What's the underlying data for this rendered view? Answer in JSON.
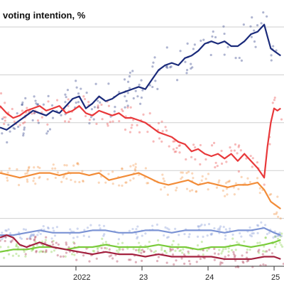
{
  "chart_data": {
    "type": "line",
    "title": "voting intention, %",
    "x_ticks": [
      "2022",
      "23",
      "24",
      "25"
    ],
    "x_tick_positions": [
      2022.0,
      2023.0,
      2024.0,
      2025.0
    ],
    "x_range": [
      2020.85,
      2025.15
    ],
    "y_range": [
      0,
      50
    ],
    "grid": true,
    "legend": "none",
    "series": [
      {
        "color": "#1a2a7a",
        "x": [
          2020.85,
          2020.95,
          2021.05,
          2021.15,
          2021.25,
          2021.35,
          2021.45,
          2021.55,
          2021.65,
          2021.75,
          2021.85,
          2021.95,
          2022.05,
          2022.15,
          2022.25,
          2022.35,
          2022.45,
          2022.55,
          2022.65,
          2022.75,
          2022.85,
          2022.95,
          2023.05,
          2023.15,
          2023.25,
          2023.35,
          2023.45,
          2023.55,
          2023.65,
          2023.75,
          2023.85,
          2023.95,
          2024.05,
          2024.15,
          2024.25,
          2024.35,
          2024.45,
          2024.55,
          2024.65,
          2024.75,
          2024.85,
          2024.9,
          2024.95,
          2025.0,
          2025.05,
          2025.1
        ],
        "values": [
          29.0,
          28.5,
          29.5,
          30.5,
          31.5,
          32.5,
          32.0,
          31.5,
          32.5,
          32.0,
          33.5,
          35.0,
          35.5,
          33.0,
          34.0,
          35.5,
          34.5,
          35.0,
          36.0,
          36.5,
          37.0,
          37.5,
          37.0,
          39.0,
          41.0,
          42.0,
          42.5,
          42.0,
          43.5,
          44.0,
          45.0,
          46.5,
          47.0,
          46.5,
          47.0,
          46.0,
          46.0,
          47.0,
          48.5,
          49.0,
          50.5,
          48.0,
          45.5,
          45.0,
          44.5,
          44.0
        ]
      },
      {
        "color": "#e8383a",
        "x": [
          2020.85,
          2020.95,
          2021.05,
          2021.15,
          2021.25,
          2021.35,
          2021.45,
          2021.55,
          2021.65,
          2021.75,
          2021.85,
          2021.95,
          2022.05,
          2022.15,
          2022.25,
          2022.35,
          2022.45,
          2022.55,
          2022.65,
          2022.75,
          2022.85,
          2022.95,
          2023.05,
          2023.15,
          2023.25,
          2023.35,
          2023.45,
          2023.55,
          2023.65,
          2023.75,
          2023.85,
          2023.95,
          2024.05,
          2024.15,
          2024.25,
          2024.35,
          2024.45,
          2024.55,
          2024.65,
          2024.75,
          2024.85,
          2024.9,
          2024.95,
          2025.0,
          2025.05,
          2025.1
        ],
        "values": [
          33.5,
          32.0,
          31.0,
          31.5,
          32.5,
          33.0,
          33.5,
          32.5,
          33.0,
          33.5,
          32.0,
          32.5,
          33.5,
          32.0,
          31.5,
          32.5,
          32.0,
          31.5,
          32.0,
          31.0,
          31.0,
          30.5,
          30.0,
          29.0,
          28.0,
          27.5,
          27.0,
          26.0,
          25.5,
          24.0,
          24.5,
          23.5,
          23.0,
          23.5,
          22.5,
          23.5,
          22.0,
          23.5,
          22.0,
          20.5,
          18.5,
          25.0,
          30.0,
          33.0,
          32.5,
          33.0
        ]
      },
      {
        "color": "#f28c38",
        "x": [
          2020.85,
          2021.0,
          2021.15,
          2021.3,
          2021.45,
          2021.6,
          2021.75,
          2021.9,
          2022.05,
          2022.2,
          2022.35,
          2022.5,
          2022.65,
          2022.8,
          2022.95,
          2023.1,
          2023.25,
          2023.4,
          2023.55,
          2023.7,
          2023.85,
          2024.0,
          2024.15,
          2024.3,
          2024.45,
          2024.6,
          2024.75,
          2024.85,
          2024.95,
          2025.05,
          2025.1
        ],
        "values": [
          19.5,
          19.0,
          18.5,
          19.0,
          19.5,
          19.5,
          19.0,
          19.5,
          19.5,
          19.0,
          19.5,
          18.0,
          18.5,
          19.0,
          19.5,
          18.5,
          17.5,
          17.0,
          17.5,
          18.0,
          17.0,
          17.5,
          17.0,
          16.5,
          17.0,
          17.0,
          17.5,
          16.0,
          13.5,
          12.5,
          12.0
        ]
      },
      {
        "color": "#7b93d4",
        "x": [
          2020.85,
          2021.05,
          2021.25,
          2021.45,
          2021.65,
          2021.85,
          2022.05,
          2022.25,
          2022.45,
          2022.65,
          2022.85,
          2023.05,
          2023.25,
          2023.45,
          2023.65,
          2023.85,
          2024.05,
          2024.25,
          2024.45,
          2024.65,
          2024.85,
          2025.0,
          2025.1
        ],
        "values": [
          6.5,
          6.5,
          7.0,
          7.5,
          7.0,
          7.0,
          7.0,
          7.5,
          7.5,
          7.0,
          7.0,
          7.5,
          7.5,
          7.0,
          7.5,
          7.5,
          7.5,
          7.0,
          7.5,
          7.5,
          8.0,
          7.0,
          6.5
        ]
      },
      {
        "color": "#7acb3a",
        "x": [
          2020.85,
          2021.05,
          2021.25,
          2021.45,
          2021.65,
          2021.85,
          2022.05,
          2022.25,
          2022.45,
          2022.65,
          2022.85,
          2023.05,
          2023.25,
          2023.45,
          2023.65,
          2023.85,
          2024.05,
          2024.25,
          2024.45,
          2024.65,
          2024.85,
          2025.0,
          2025.1
        ],
        "values": [
          3.0,
          3.5,
          3.5,
          4.0,
          4.0,
          3.5,
          4.0,
          4.0,
          4.5,
          4.0,
          4.0,
          4.0,
          4.5,
          4.0,
          4.0,
          3.5,
          4.0,
          4.0,
          4.5,
          4.0,
          4.5,
          5.0,
          5.5
        ]
      },
      {
        "color": "#a3213f",
        "x": [
          2020.85,
          2020.95,
          2021.05,
          2021.15,
          2021.25,
          2021.45,
          2021.65,
          2021.85,
          2022.05,
          2022.25,
          2022.45,
          2022.65,
          2022.85,
          2023.05,
          2023.25,
          2023.45,
          2023.65,
          2023.85,
          2024.05,
          2024.25,
          2024.45,
          2024.65,
          2024.85,
          2025.0,
          2025.1
        ],
        "values": [
          6.0,
          6.5,
          6.0,
          4.5,
          4.0,
          5.0,
          4.0,
          3.5,
          3.0,
          2.5,
          3.0,
          2.5,
          2.5,
          2.0,
          2.5,
          2.0,
          2.0,
          2.0,
          2.0,
          1.5,
          1.5,
          1.5,
          2.0,
          2.0,
          1.5
        ]
      }
    ]
  }
}
